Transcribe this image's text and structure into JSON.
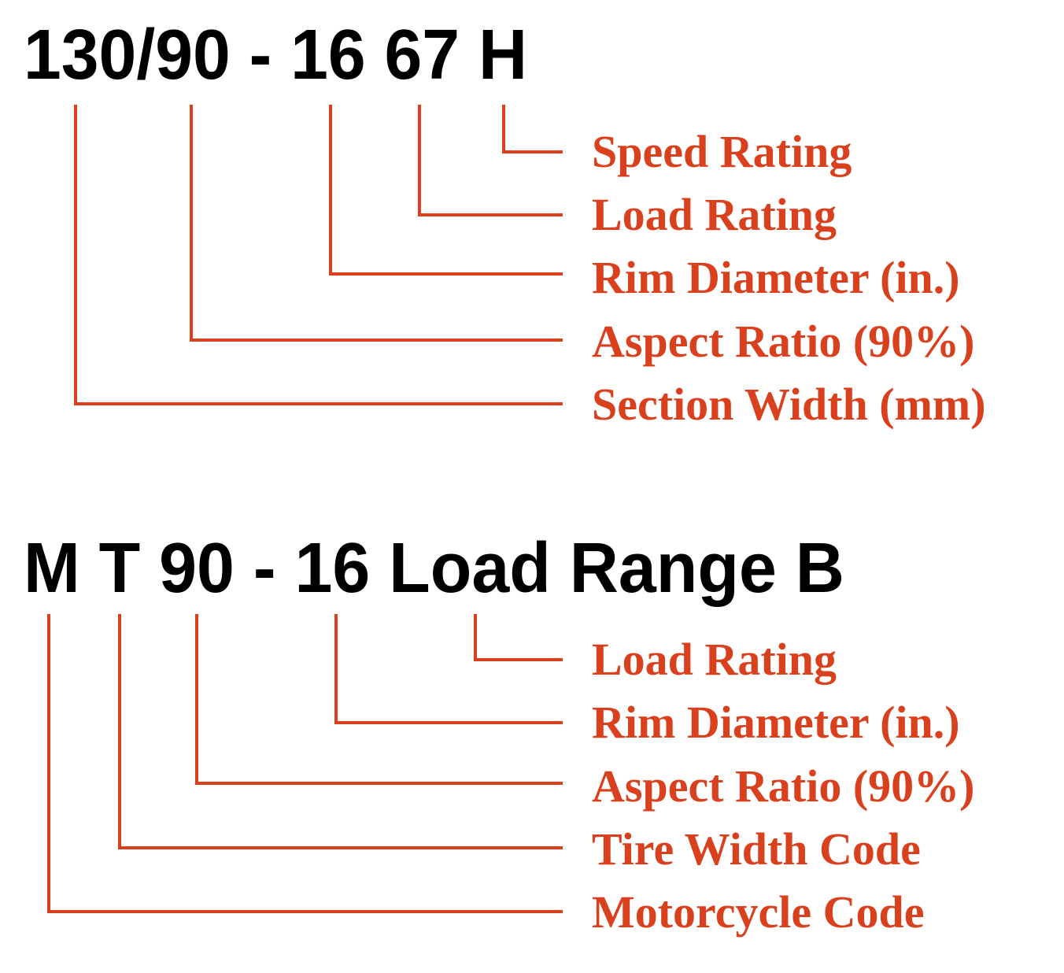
{
  "colors": {
    "accent": "#d9411e",
    "code_text": "#000000"
  },
  "diagrams": [
    {
      "code": "130/90 - 16 67 H",
      "labels": [
        "Speed Rating",
        "Load Rating",
        "Rim Diameter (in.)",
        "Aspect Ratio (90%)",
        "Section Width (mm)"
      ]
    },
    {
      "code": "M T 90 - 16 Load Range B",
      "labels": [
        "Load Rating",
        "Rim Diameter (in.)",
        "Aspect Ratio (90%)",
        "Tire Width Code",
        "Motorcycle Code"
      ]
    }
  ]
}
